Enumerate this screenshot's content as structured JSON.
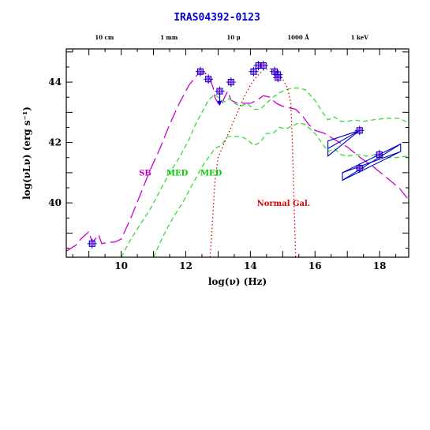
{
  "chart_data": {
    "type": "line",
    "title": "IRAS04392-0123",
    "xlabel": "log(ν) (Hz)",
    "ylabel": "log(νLν) (erg s⁻¹)",
    "xlim": [
      8.3,
      18.9
    ],
    "ylim": [
      38.2,
      45.1
    ],
    "x_ticks": [
      10,
      12,
      14,
      16,
      18
    ],
    "y_ticks": [
      40,
      42,
      44
    ],
    "grid": false,
    "top_axis_labels": [
      {
        "x": 9.48,
        "label": "10 cm"
      },
      {
        "x": 11.48,
        "label": "1 mm"
      },
      {
        "x": 13.48,
        "label": "10 μ"
      },
      {
        "x": 15.48,
        "label": "1000 Å"
      },
      {
        "x": 17.38,
        "label": "1 keV"
      }
    ],
    "annotations": [
      {
        "text": "SB",
        "x": 10.55,
        "y": 40.9,
        "color": "#cc00cc"
      },
      {
        "text": "MED",
        "x": 11.4,
        "y": 40.9,
        "color": "#00cc00"
      },
      {
        "text": "MED",
        "x": 12.45,
        "y": 40.9,
        "color": "#00cc00"
      },
      {
        "text": "Normal Gal.",
        "x": 14.2,
        "y": 39.9,
        "color": "#dd0000"
      }
    ],
    "colors": {
      "sb": "#cc00cc",
      "med": "#33dd33",
      "normal": "#dd0000",
      "obs": "#0000cc",
      "title": "#0000cc"
    },
    "series": [
      {
        "style": "long-dash",
        "color": "#cc00cc",
        "x": [
          8.3,
          8.6,
          8.75,
          8.9,
          9.0,
          9.1,
          9.2,
          9.3,
          9.4,
          9.6,
          9.8,
          10.0,
          10.3,
          10.6,
          10.9,
          11.2,
          11.5,
          11.8,
          12.1,
          12.4,
          12.6,
          12.75,
          12.85,
          12.9,
          13.0,
          13.1,
          13.2,
          13.3,
          13.4,
          13.6,
          13.8,
          14.0,
          14.2,
          14.4,
          14.6,
          14.8,
          15.0,
          15.2,
          15.4,
          15.6,
          15.8,
          16.0,
          16.3,
          16.6,
          17.0,
          17.4,
          17.8,
          18.2,
          18.6,
          18.9
        ],
        "y": [
          38.4,
          38.6,
          38.8,
          38.95,
          39.05,
          38.7,
          38.8,
          38.95,
          38.65,
          38.7,
          38.7,
          38.8,
          39.5,
          40.3,
          41.1,
          41.8,
          42.6,
          43.3,
          43.9,
          44.3,
          44.3,
          44.1,
          43.8,
          43.5,
          43.3,
          43.2,
          43.5,
          43.7,
          43.4,
          43.3,
          43.3,
          43.3,
          43.4,
          43.55,
          43.5,
          43.3,
          43.2,
          43.15,
          43.1,
          42.9,
          42.6,
          42.4,
          42.3,
          42.1,
          41.85,
          41.5,
          41.2,
          40.85,
          40.5,
          40.1
        ]
      },
      {
        "style": "dashed",
        "color": "#33dd33",
        "x": [
          10.0,
          10.3,
          10.6,
          10.9,
          11.2,
          11.5,
          11.8,
          12.1,
          12.3,
          12.5,
          12.7,
          12.9,
          13.1,
          13.2,
          13.35,
          13.5,
          13.7,
          13.9,
          14.1,
          14.3,
          14.5,
          14.7,
          14.9,
          15.1,
          15.3,
          15.5,
          15.7,
          16.0,
          16.2,
          16.4,
          16.6,
          16.8,
          17.0,
          17.2,
          17.5,
          17.8,
          18.2,
          18.6,
          18.9
        ],
        "y": [
          38.2,
          38.8,
          39.3,
          39.8,
          40.4,
          41.0,
          41.5,
          42.1,
          42.6,
          43.0,
          43.4,
          43.6,
          43.4,
          43.35,
          43.45,
          43.3,
          43.2,
          43.3,
          43.1,
          43.1,
          43.3,
          43.5,
          43.65,
          43.75,
          43.8,
          43.8,
          43.75,
          43.4,
          43.05,
          42.75,
          42.85,
          42.7,
          42.7,
          42.75,
          42.7,
          42.75,
          42.8,
          42.8,
          42.65
        ]
      },
      {
        "style": "dashed",
        "color": "#33dd33",
        "x": [
          11.0,
          11.3,
          11.6,
          11.9,
          12.2,
          12.5,
          12.7,
          12.9,
          13.1,
          13.3,
          13.5,
          13.7,
          13.9,
          14.1,
          14.3,
          14.5,
          14.7,
          14.9,
          15.1,
          15.3,
          15.5,
          15.7,
          16.0,
          16.2,
          16.4,
          16.6,
          16.8,
          17.0,
          17.3,
          17.6,
          17.9,
          18.2,
          18.5,
          18.9
        ],
        "y": [
          38.2,
          38.9,
          39.5,
          40.0,
          40.6,
          41.2,
          41.5,
          41.8,
          41.9,
          42.2,
          42.2,
          42.2,
          42.1,
          41.9,
          42.0,
          42.3,
          42.3,
          42.5,
          42.45,
          42.55,
          42.65,
          42.6,
          42.3,
          42.0,
          41.7,
          41.8,
          41.6,
          41.55,
          41.6,
          41.55,
          41.6,
          41.5,
          41.5,
          41.55
        ]
      },
      {
        "style": "dotted",
        "color": "#dd0000",
        "x": [
          12.75,
          12.8,
          12.85,
          12.9,
          13.0,
          13.2,
          13.4,
          13.6,
          13.8,
          14.0,
          14.2,
          14.4,
          14.6,
          14.8,
          15.0,
          15.15,
          15.25,
          15.3,
          15.35,
          15.4
        ],
        "y": [
          38.2,
          38.9,
          39.8,
          40.7,
          41.5,
          42.0,
          42.5,
          43.0,
          43.5,
          43.9,
          44.2,
          44.4,
          44.45,
          44.35,
          44.1,
          43.8,
          43.3,
          42.0,
          40.0,
          38.2
        ]
      }
    ],
    "observations": [
      {
        "x": 9.1,
        "y": 38.65
      },
      {
        "x": 12.45,
        "y": 44.35
      },
      {
        "x": 12.7,
        "y": 44.1
      },
      {
        "x": 13.05,
        "y": 43.7
      },
      {
        "x": 13.4,
        "y": 44.0
      },
      {
        "x": 14.1,
        "y": 44.35
      },
      {
        "x": 14.25,
        "y": 44.55
      },
      {
        "x": 14.4,
        "y": 44.55
      },
      {
        "x": 14.75,
        "y": 44.35
      },
      {
        "x": 14.85,
        "y": 44.25
      },
      {
        "x": 14.85,
        "y": 44.15
      },
      {
        "x": 17.38,
        "y": 42.4
      },
      {
        "x": 17.38,
        "y": 41.15
      },
      {
        "x": 17.99,
        "y": 41.6
      }
    ],
    "upper_limit": {
      "x": 13.05,
      "y_from": 43.65,
      "y_to": 43.25
    },
    "bowties": [
      {
        "x1": 16.4,
        "x2": 17.38,
        "y1_high": 42.05,
        "y1_low": 41.55,
        "y_pivot": 42.4
      },
      {
        "x1": 16.85,
        "x2": 18.65,
        "y1_high": 41.0,
        "y1_low": 40.75,
        "y2_high": 41.95,
        "y2_low": 41.7
      }
    ]
  }
}
